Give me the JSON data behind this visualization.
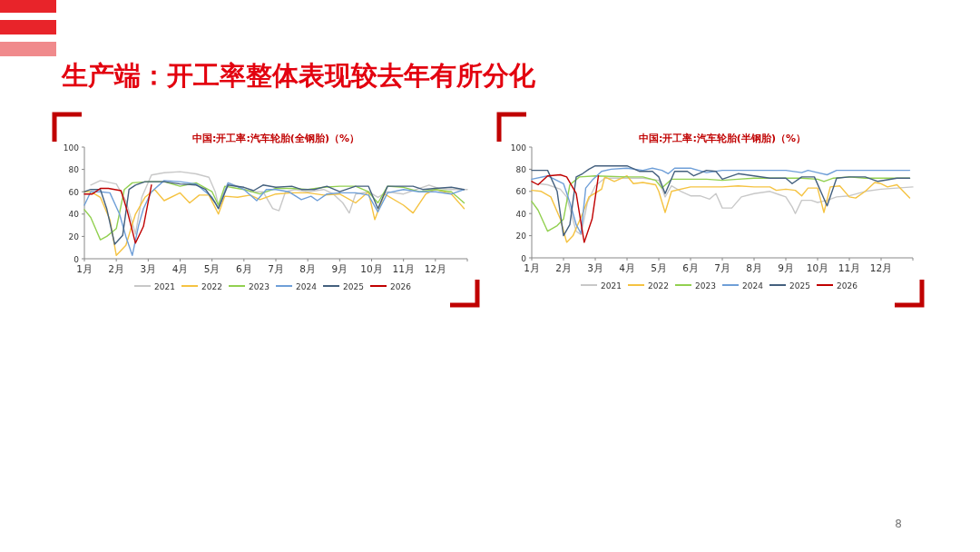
{
  "chart_data": [
    {
      "type": "line",
      "title": "中国:开工率:汽车轮胎(全钢胎)（%）",
      "annotations": [
        "生产端：开工率整体表现较去年有所分化",
        "8"
      ],
      "xlim": [
        1,
        13
      ],
      "xticks": [
        {
          "value": 1,
          "label": "1月"
        },
        {
          "value": 2,
          "label": "2月"
        },
        {
          "value": 3,
          "label": "3月"
        },
        {
          "value": 4,
          "label": "4月"
        },
        {
          "value": 5,
          "label": "5月"
        },
        {
          "value": 6,
          "label": "6月"
        },
        {
          "value": 7,
          "label": "7月"
        },
        {
          "value": 8,
          "label": "8月"
        },
        {
          "value": 9,
          "label": "9月"
        },
        {
          "value": 10,
          "label": "10月"
        },
        {
          "value": 11,
          "label": "11月"
        },
        {
          "value": 12,
          "label": "12月"
        },
        {
          "value": 13,
          "label": null
        }
      ],
      "ylim": [
        0,
        100
      ],
      "yticks": [
        0,
        20,
        40,
        60,
        80,
        100
      ],
      "grid": false,
      "legend": "bottom",
      "marker": "none",
      "line_style": "solid",
      "series": [
        {
          "name": "2021",
          "color": "#c8c8c8",
          "x": [
            1.2,
            1.5,
            2,
            2.3,
            2.6,
            2.8,
            3.1,
            3.5,
            4,
            4.5,
            4.9,
            5.1,
            5.2,
            5.5,
            5.8,
            6.2,
            6.6,
            6.9,
            7.1,
            7.3,
            7.6,
            8,
            8.5,
            8.8,
            9.1,
            9.3,
            9.5,
            9.9,
            10.2,
            10.5,
            11,
            11.5,
            11.8,
            12.1,
            12.5,
            13
          ],
          "values": [
            66,
            70,
            67,
            52,
            22,
            55,
            75,
            77,
            78,
            76,
            73,
            60,
            48,
            68,
            65,
            60,
            60,
            45,
            43,
            60,
            62,
            60,
            62,
            58,
            50,
            41,
            58,
            60,
            55,
            60,
            58,
            63,
            66,
            63,
            62,
            62
          ]
        },
        {
          "name": "2022",
          "color": "#f5c342",
          "x": [
            1,
            1.2,
            1.5,
            1.8,
            2,
            2.3,
            2.6,
            2.9,
            3.2,
            3.5,
            4,
            4.3,
            4.6,
            4.9,
            5.2,
            5.4,
            5.8,
            6.2,
            6.5,
            7,
            7.5,
            8,
            8.5,
            9,
            9.5,
            9.9,
            10.1,
            10.4,
            11,
            11.3,
            11.7,
            12,
            12.5,
            12.9
          ],
          "values": [
            60,
            60,
            55,
            35,
            3,
            12,
            40,
            55,
            62,
            52,
            59,
            50,
            57,
            57,
            40,
            56,
            55,
            57,
            53,
            58,
            59,
            59,
            57,
            58,
            50,
            60,
            35,
            58,
            48,
            41,
            58,
            62,
            58,
            45
          ]
        },
        {
          "name": "2023",
          "color": "#92d050",
          "x": [
            1,
            1.2,
            1.5,
            1.7,
            2,
            2.25,
            2.5,
            3,
            3.5,
            4,
            4.5,
            5,
            5.2,
            5.4,
            6,
            6.5,
            7,
            7.5,
            8,
            8.5,
            9,
            9.5,
            9.9,
            10.2,
            10.5,
            11,
            11.5,
            12,
            12.5,
            12.9
          ],
          "values": [
            44,
            37,
            17,
            20,
            27,
            62,
            68,
            69,
            69,
            65,
            68,
            60,
            48,
            65,
            62,
            58,
            63,
            63,
            62,
            64,
            65,
            65,
            60,
            50,
            65,
            64,
            60,
            62,
            60,
            50
          ]
        },
        {
          "name": "2024",
          "color": "#6f9fd8",
          "x": [
            1,
            1.2,
            1.5,
            1.8,
            2.1,
            2.3,
            2.5,
            2.7,
            2.85,
            3.1,
            3.5,
            4,
            4.5,
            5,
            5.2,
            5.5,
            6,
            6.4,
            6.7,
            7,
            7.4,
            7.8,
            8.1,
            8.3,
            8.6,
            9,
            9.5,
            9.9,
            10.2,
            10.5,
            11,
            11.5,
            12,
            12.5,
            12.9
          ],
          "values": [
            48,
            60,
            60,
            59,
            40,
            20,
            3,
            30,
            45,
            60,
            70,
            69,
            67,
            55,
            45,
            68,
            62,
            52,
            62,
            62,
            60,
            53,
            56,
            52,
            58,
            59,
            59,
            57,
            42,
            59,
            62,
            60,
            60,
            58,
            62
          ]
        },
        {
          "name": "2025",
          "color": "#44607e",
          "x": [
            1,
            1.2,
            1.5,
            1.7,
            1.95,
            2.2,
            2.4,
            2.6,
            2.9,
            3.5,
            4,
            4.5,
            4.8,
            5.1,
            5.2,
            5.5,
            6,
            6.3,
            6.6,
            7,
            7.5,
            7.8,
            8.2,
            8.6,
            9,
            9.5,
            9.9,
            10.2,
            10.5,
            11,
            11.3,
            11.6,
            12,
            12.5,
            12.9
          ],
          "values": [
            60,
            62,
            62,
            45,
            13,
            21,
            62,
            66,
            69,
            69,
            67,
            66,
            62,
            50,
            45,
            66,
            64,
            61,
            66,
            64,
            65,
            62,
            62,
            65,
            60,
            65,
            65,
            45,
            65,
            65,
            65,
            62,
            63,
            64,
            62
          ]
        },
        {
          "name": "2026",
          "color": "#c00000",
          "x": [
            1,
            1.25,
            1.5,
            1.75,
            1.95,
            2.15,
            2.35,
            2.6,
            2.85,
            3.1
          ],
          "values": [
            58,
            58,
            63,
            63,
            62,
            61,
            42,
            14,
            29,
            66
          ]
        }
      ]
    },
    {
      "type": "line",
      "title": "中国:开工率:汽车轮胎(半钢胎)（%）",
      "xlim": [
        1,
        13
      ],
      "xticks": [
        {
          "value": 1,
          "label": "1月"
        },
        {
          "value": 2,
          "label": "2月"
        },
        {
          "value": 3,
          "label": "3月"
        },
        {
          "value": 4,
          "label": "4月"
        },
        {
          "value": 5,
          "label": "5月"
        },
        {
          "value": 6,
          "label": "6月"
        },
        {
          "value": 7,
          "label": "7月"
        },
        {
          "value": 8,
          "label": "8月"
        },
        {
          "value": 9,
          "label": "9月"
        },
        {
          "value": 10,
          "label": "10月"
        },
        {
          "value": 11,
          "label": "11月"
        },
        {
          "value": 12,
          "label": "12月"
        },
        {
          "value": 13,
          "label": null
        }
      ],
      "ylim": [
        0,
        100
      ],
      "yticks": [
        0,
        20,
        40,
        60,
        80,
        100
      ],
      "grid": false,
      "legend": "bottom",
      "marker": "none",
      "line_style": "solid",
      "series": [
        {
          "name": "2021",
          "color": "#c8c8c8",
          "x": [
            1.2,
            1.5,
            1.9,
            2.1,
            2.4,
            2.55,
            2.75,
            3,
            3.3,
            4.5,
            5,
            5.2,
            5.4,
            5.7,
            6,
            6.3,
            6.6,
            6.8,
            7,
            7.3,
            7.6,
            8,
            8.5,
            8.8,
            9,
            9.2,
            9.3,
            9.5,
            9.8,
            10,
            10.3,
            10.6,
            11,
            11.5,
            12,
            12.5,
            13
          ],
          "values": [
            67,
            66,
            62,
            55,
            24,
            21,
            50,
            65,
            72,
            72,
            70,
            55,
            65,
            60,
            56,
            56,
            53,
            58,
            45,
            45,
            55,
            58,
            60,
            57,
            55,
            46,
            40,
            52,
            52,
            50,
            52,
            55,
            56,
            60,
            62,
            63,
            64
          ]
        },
        {
          "name": "2022",
          "color": "#f5c342",
          "x": [
            1,
            1.3,
            1.6,
            1.9,
            2.1,
            2.3,
            2.6,
            2.8,
            3.2,
            3.3,
            3.6,
            4,
            4.2,
            4.5,
            4.9,
            5,
            5.2,
            5.4,
            6,
            6.5,
            7,
            7.5,
            8,
            8.5,
            8.7,
            9,
            9.3,
            9.5,
            9.7,
            10,
            10.2,
            10.4,
            10.7,
            11,
            11.2,
            11.5,
            11.8,
            12,
            12.2,
            12.5,
            12.9
          ],
          "values": [
            61,
            60,
            55,
            35,
            14,
            20,
            40,
            55,
            62,
            73,
            69,
            74,
            67,
            68,
            66,
            60,
            41,
            60,
            64,
            64,
            64,
            65,
            64,
            64,
            61,
            62,
            61,
            56,
            63,
            63,
            41,
            64,
            65,
            55,
            54,
            60,
            68,
            67,
            64,
            66,
            54
          ]
        },
        {
          "name": "2023",
          "color": "#92d050",
          "x": [
            1,
            1.2,
            1.5,
            1.8,
            2,
            2.2,
            2.5,
            3,
            4,
            4.5,
            4.9,
            5.1,
            5.4,
            6,
            6.5,
            7,
            7.5,
            8,
            8.5,
            9,
            9.5,
            10,
            10.2,
            10.5,
            11,
            11.5,
            12,
            12.9
          ],
          "values": [
            51,
            43,
            24,
            29,
            35,
            66,
            73,
            74,
            73,
            73,
            70,
            63,
            71,
            71,
            71,
            70,
            71,
            72,
            72,
            72,
            72,
            71,
            69,
            72,
            73,
            72,
            72,
            72
          ]
        },
        {
          "name": "2024",
          "color": "#6f9fd8",
          "x": [
            1,
            1.5,
            2,
            2.2,
            2.4,
            2.55,
            2.7,
            2.9,
            3.2,
            3.5,
            4,
            4.5,
            4.8,
            5.1,
            5.3,
            5.5,
            6,
            6.5,
            7,
            8,
            9,
            9.5,
            9.7,
            10,
            10.3,
            10.6,
            11,
            12,
            12.9
          ],
          "values": [
            71,
            74,
            67,
            50,
            30,
            22,
            63,
            70,
            78,
            80,
            81,
            79,
            81,
            79,
            76,
            81,
            81,
            77,
            79,
            79,
            79,
            77,
            79,
            77,
            75,
            79,
            79,
            79,
            79
          ]
        },
        {
          "name": "2025",
          "color": "#44607e",
          "x": [
            1,
            1.5,
            1.8,
            2,
            2.2,
            2.4,
            2.6,
            2.8,
            3,
            3.5,
            4,
            4.4,
            4.8,
            5,
            5.2,
            5.5,
            5.9,
            6.1,
            6.5,
            6.8,
            7,
            7.5,
            8,
            8.5,
            9,
            9.2,
            9.5,
            9.9,
            10.3,
            10.6,
            11,
            11.5,
            11.9,
            12.5,
            12.9
          ],
          "values": [
            79,
            79,
            60,
            20,
            30,
            73,
            76,
            80,
            83,
            83,
            83,
            78,
            78,
            73,
            58,
            78,
            78,
            74,
            79,
            78,
            71,
            76,
            74,
            72,
            72,
            67,
            73,
            73,
            47,
            72,
            73,
            73,
            69,
            72,
            72
          ]
        },
        {
          "name": "2026",
          "color": "#c00000",
          "x": [
            1,
            1.2,
            1.5,
            1.9,
            2.1,
            2.4,
            2.65,
            2.9,
            3.1
          ],
          "values": [
            69,
            66,
            74,
            75,
            73,
            58,
            14,
            35,
            74
          ]
        }
      ]
    }
  ]
}
